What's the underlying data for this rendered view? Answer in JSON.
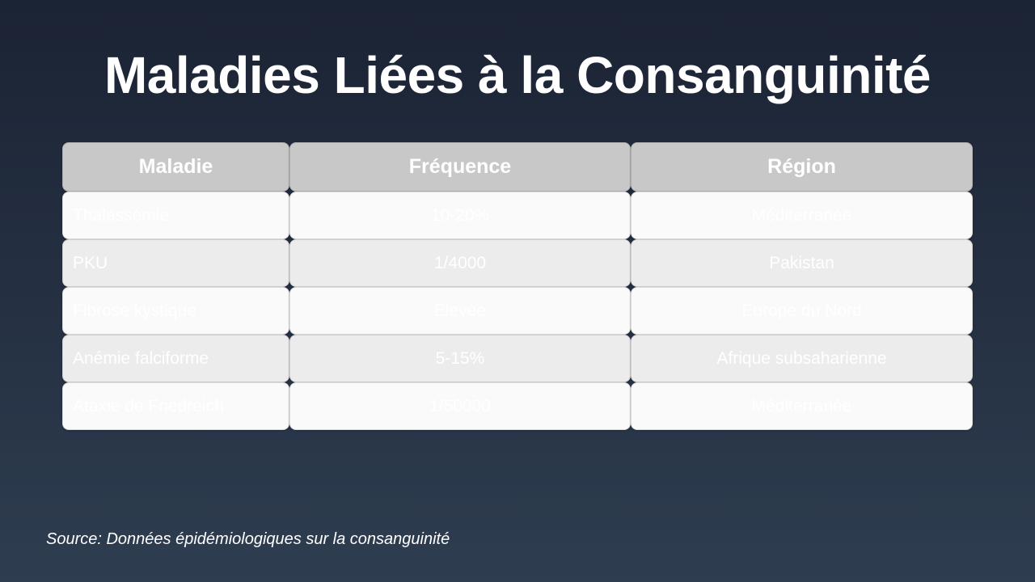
{
  "title": "Maladies Liées à la Consanguinité",
  "table": {
    "headers": [
      "Maladie",
      "Fréquence",
      "Région"
    ],
    "rows": [
      [
        "Thalassémie",
        "10-20%",
        "Méditerranée"
      ],
      [
        "PKU",
        "1/4000",
        "Pakistan"
      ],
      [
        "Fibrose kystique",
        "Élevée",
        "Europe du Nord"
      ],
      [
        "Anémie falciforme",
        "5-15%",
        "Afrique subsaharienne"
      ],
      [
        "Ataxie de Friedreich",
        "1/50000",
        "Méditerranée"
      ]
    ]
  },
  "source": "Source: Données épidémiologiques sur la consanguinité",
  "colors": {
    "header": "#c8c8c8",
    "row_odd": "#fafafa",
    "row_even": "#ececec",
    "text": "#ffffff"
  }
}
